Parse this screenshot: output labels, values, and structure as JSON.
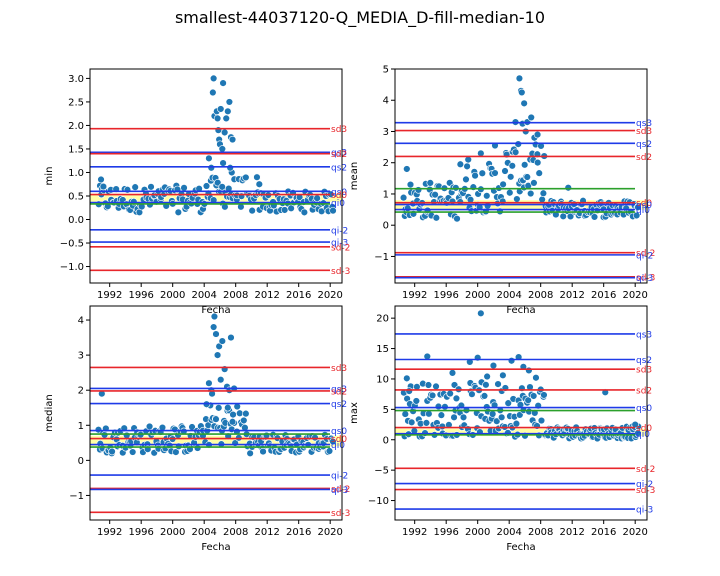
{
  "figure_title": "smallest-44037120-Q_MEDIA_D-fill-median-10",
  "colors": {
    "points": "#1f77b4",
    "sd": "#e8262b",
    "qs": "#1f3be8",
    "qi": "#1f3be8",
    "median": "#2ca02c",
    "band": "#ffff80"
  },
  "chart_data": [
    {
      "type": "scatter",
      "title": "",
      "xlabel": "Fecha",
      "ylabel": "min",
      "xlim": [
        1989.5,
        2021.5
      ],
      "ylim": [
        -1.35,
        3.2
      ],
      "xticks": [
        "1992",
        "1996",
        "2000",
        "2004",
        "2008",
        "2012",
        "2016",
        "2020"
      ],
      "yticks": [
        "−1.0",
        "−0.5",
        "0.0",
        "0.5",
        "1.0",
        "1.5",
        "2.0",
        "2.5",
        "3.0"
      ],
      "ytick_values": [
        -1.0,
        -0.5,
        0.0,
        0.5,
        1.0,
        1.5,
        2.0,
        2.5,
        3.0
      ],
      "band": [
        0.38,
        0.55
      ],
      "lines": [
        {
          "label": "sd3",
          "y": 1.93,
          "kind": "sd"
        },
        {
          "label": "qs3",
          "y": 1.43,
          "kind": "qs"
        },
        {
          "label": "sd2",
          "y": 1.4,
          "kind": "sd"
        },
        {
          "label": "qs2",
          "y": 1.12,
          "kind": "qs"
        },
        {
          "label": "qs0",
          "y": 0.6,
          "kind": "qs"
        },
        {
          "label": "sd0",
          "y": 0.53,
          "kind": "sd"
        },
        {
          "label": "qi0",
          "y": 0.36,
          "kind": "qi"
        },
        {
          "label": "",
          "y": 0.33,
          "kind": "median"
        },
        {
          "label": "qi-2",
          "y": -0.22,
          "kind": "qi"
        },
        {
          "label": "qi-3",
          "y": -0.48,
          "kind": "qi"
        },
        {
          "label": "sd-2",
          "y": -0.58,
          "kind": "sd"
        },
        {
          "label": "sd-3",
          "y": -1.08,
          "kind": "sd"
        }
      ],
      "base_points": {
        "x0": 1990.5,
        "x1": 2020.5,
        "n": 180,
        "ranges": [
          [
            1990.5,
            2004,
            0.15,
            0.72
          ],
          [
            2004,
            2009.5,
            0.25,
            0.9
          ],
          [
            2009.5,
            2020.5,
            0.15,
            0.6
          ]
        ]
      },
      "points": [
        [
          2004.6,
          1.3
        ],
        [
          2004.9,
          1.1
        ],
        [
          2005.1,
          2.7
        ],
        [
          2005.3,
          2.2
        ],
        [
          2005.2,
          3.0
        ],
        [
          2005.6,
          2.3
        ],
        [
          2005.7,
          2.15
        ],
        [
          2005.8,
          1.9
        ],
        [
          2005.9,
          1.7
        ],
        [
          2006.0,
          1.6
        ],
        [
          2006.1,
          2.35
        ],
        [
          2006.3,
          1.5
        ],
        [
          2006.4,
          2.9
        ],
        [
          2006.4,
          1.2
        ],
        [
          2006.6,
          1.85
        ],
        [
          2006.8,
          2.15
        ],
        [
          2007.0,
          2.3
        ],
        [
          2007.2,
          2.5
        ],
        [
          2007.4,
          1.75
        ],
        [
          2007.5,
          1.0
        ],
        [
          2007.6,
          1.7
        ],
        [
          2007.3,
          1.1
        ],
        [
          2010.7,
          0.9
        ],
        [
          2011.0,
          0.75
        ],
        [
          1990.9,
          0.85
        ],
        [
          1991.2,
          0.7
        ]
      ]
    },
    {
      "type": "scatter",
      "title": "",
      "xlabel": "Fecha",
      "ylabel": "mean",
      "xlim": [
        1989.5,
        2021.5
      ],
      "ylim": [
        -1.85,
        5.0
      ],
      "xticks": [
        "1992",
        "1996",
        "2000",
        "2004",
        "2008",
        "2012",
        "2016",
        "2020"
      ],
      "yticks": [
        "−1",
        "0",
        "1",
        "2",
        "3",
        "4",
        "5"
      ],
      "ytick_values": [
        -1,
        0,
        1,
        2,
        3,
        4,
        5
      ],
      "band": [
        0.5,
        0.8
      ],
      "lines": [
        {
          "label": "qs3",
          "y": 3.28,
          "kind": "qs"
        },
        {
          "label": "sd3",
          "y": 3.03,
          "kind": "sd"
        },
        {
          "label": "qs2",
          "y": 2.62,
          "kind": "qs"
        },
        {
          "label": "sd2",
          "y": 2.2,
          "kind": "sd"
        },
        {
          "label": "",
          "y": 1.17,
          "kind": "median"
        },
        {
          "label": "sd0",
          "y": 0.72,
          "kind": "sd"
        },
        {
          "label": "qs0",
          "y": 0.66,
          "kind": "qs"
        },
        {
          "label": "qi0",
          "y": 0.5,
          "kind": "qi"
        },
        {
          "label": "",
          "y": 0.42,
          "kind": "median"
        },
        {
          "label": "sd-2",
          "y": -0.88,
          "kind": "sd"
        },
        {
          "label": "qi-2",
          "y": -0.95,
          "kind": "qi"
        },
        {
          "label": "sd-3",
          "y": -1.65,
          "kind": "sd"
        },
        {
          "label": "qi-3",
          "y": -1.68,
          "kind": "qi"
        }
      ],
      "base_points": {
        "x0": 1990.5,
        "x1": 2020.5,
        "n": 200,
        "ranges": [
          [
            1990.5,
            1997.5,
            0.2,
            1.4
          ],
          [
            1997.5,
            2003.5,
            0.4,
            2.0
          ],
          [
            2003.5,
            2008.5,
            0.8,
            2.6
          ],
          [
            2008.5,
            2020.5,
            0.25,
            0.8
          ]
        ]
      },
      "points": [
        [
          2004.8,
          3.3
        ],
        [
          2005.3,
          4.7
        ],
        [
          2005.5,
          4.3
        ],
        [
          2005.6,
          4.25
        ],
        [
          2005.7,
          3.25
        ],
        [
          2005.9,
          3.9
        ],
        [
          2006.1,
          3.0
        ],
        [
          2006.3,
          3.3
        ],
        [
          2006.8,
          3.45
        ],
        [
          2007.2,
          2.8
        ],
        [
          2007.6,
          2.9
        ],
        [
          2002.2,
          2.55
        ],
        [
          1998.8,
          2.1
        ],
        [
          1997.8,
          1.95
        ],
        [
          2000.4,
          2.3
        ],
        [
          1991.0,
          1.8
        ],
        [
          2011.5,
          1.2
        ]
      ]
    },
    {
      "type": "scatter",
      "title": "",
      "xlabel": "Fecha",
      "ylabel": "median",
      "xlim": [
        1989.5,
        2021.5
      ],
      "ylim": [
        -1.7,
        4.4
      ],
      "xticks": [
        "1992",
        "1996",
        "2000",
        "2004",
        "2008",
        "2012",
        "2016",
        "2020"
      ],
      "yticks": [
        "−1",
        "0",
        "1",
        "2",
        "3",
        "4"
      ],
      "ytick_values": [
        -1,
        0,
        1,
        2,
        3,
        4
      ],
      "band": [
        0.4,
        0.7
      ],
      "lines": [
        {
          "label": "sd3",
          "y": 2.65,
          "kind": "sd"
        },
        {
          "label": "qs3",
          "y": 2.05,
          "kind": "qs"
        },
        {
          "label": "sd2",
          "y": 1.98,
          "kind": "sd"
        },
        {
          "label": "qs2",
          "y": 1.62,
          "kind": "qs"
        },
        {
          "label": "qs0",
          "y": 0.85,
          "kind": "qs"
        },
        {
          "label": "",
          "y": 0.75,
          "kind": "median"
        },
        {
          "label": "sd0",
          "y": 0.62,
          "kind": "sd"
        },
        {
          "label": "qi0",
          "y": 0.45,
          "kind": "qi"
        },
        {
          "label": "",
          "y": 0.38,
          "kind": "median"
        },
        {
          "label": "qi-2",
          "y": -0.42,
          "kind": "qi"
        },
        {
          "label": "sd-2",
          "y": -0.8,
          "kind": "sd"
        },
        {
          "label": "qi-3",
          "y": -0.83,
          "kind": "qi"
        },
        {
          "label": "sd-3",
          "y": -1.48,
          "kind": "sd"
        }
      ],
      "base_points": {
        "x0": 1990.5,
        "x1": 2020.5,
        "n": 200,
        "ranges": [
          [
            1990.5,
            2004,
            0.2,
            1.0
          ],
          [
            2004,
            2009.5,
            0.4,
            1.6
          ],
          [
            2009.5,
            2020.5,
            0.2,
            0.75
          ]
        ]
      },
      "points": [
        [
          2005.2,
          3.8
        ],
        [
          2005.3,
          4.1
        ],
        [
          2005.5,
          3.6
        ],
        [
          2005.7,
          3.0
        ],
        [
          2005.9,
          3.25
        ],
        [
          2006.3,
          3.4
        ],
        [
          2006.6,
          2.6
        ],
        [
          2006.9,
          2.1
        ],
        [
          2007.2,
          2.0
        ],
        [
          2007.4,
          3.5
        ],
        [
          2007.0,
          1.5
        ],
        [
          2007.6,
          1.1
        ],
        [
          2004.6,
          2.2
        ],
        [
          2004.9,
          2.0
        ],
        [
          1991.0,
          1.9
        ],
        [
          2004.3,
          1.6
        ],
        [
          2005.0,
          1.9
        ],
        [
          2006.1,
          2.3
        ],
        [
          2007.8,
          2.05
        ]
      ]
    },
    {
      "type": "scatter",
      "title": "",
      "xlabel": "Fecha",
      "ylabel": "max",
      "xlim": [
        1989.5,
        2021.5
      ],
      "ylim": [
        -13.2,
        22.0
      ],
      "xticks": [
        "1992",
        "1996",
        "2000",
        "2004",
        "2008",
        "2012",
        "2016",
        "2020"
      ],
      "yticks": [
        "−10",
        "−5",
        "0",
        "5",
        "10",
        "15",
        "20"
      ],
      "ytick_values": [
        -10,
        -5,
        0,
        5,
        10,
        15,
        20
      ],
      "band": [
        0.6,
        1.8
      ],
      "lines": [
        {
          "label": "qs3",
          "y": 17.4,
          "kind": "qs"
        },
        {
          "label": "qs2",
          "y": 13.2,
          "kind": "qs"
        },
        {
          "label": "sd3",
          "y": 11.6,
          "kind": "sd"
        },
        {
          "label": "sd2",
          "y": 8.2,
          "kind": "sd"
        },
        {
          "label": "qs0",
          "y": 5.3,
          "kind": "qs"
        },
        {
          "label": "",
          "y": 4.8,
          "kind": "median"
        },
        {
          "label": "sd0",
          "y": 2.0,
          "kind": "sd"
        },
        {
          "label": "qi0",
          "y": 1.0,
          "kind": "qi"
        },
        {
          "label": "",
          "y": 0.8,
          "kind": "median"
        },
        {
          "label": "sd-2",
          "y": -4.7,
          "kind": "sd"
        },
        {
          "label": "qi-2",
          "y": -7.2,
          "kind": "qi"
        },
        {
          "label": "sd-3",
          "y": -8.2,
          "kind": "sd"
        },
        {
          "label": "qi-3",
          "y": -11.4,
          "kind": "qi"
        }
      ],
      "base_points": {
        "x0": 1990.5,
        "x1": 2020.5,
        "n": 220,
        "ranges": [
          [
            1990.5,
            2008.5,
            0.5,
            9.5
          ],
          [
            2008.5,
            2020.5,
            0.2,
            2.2
          ]
        ]
      },
      "points": [
        [
          2000.4,
          20.8
        ],
        [
          1993.6,
          13.7
        ],
        [
          1991.0,
          10.1
        ],
        [
          1991.3,
          8.0
        ],
        [
          1996.8,
          11.0
        ],
        [
          1999.0,
          12.8
        ],
        [
          2000.0,
          13.5
        ],
        [
          2002.0,
          12.2
        ],
        [
          2004.3,
          13.0
        ],
        [
          2005.2,
          13.6
        ],
        [
          2005.8,
          12.0
        ],
        [
          2006.5,
          11.4
        ],
        [
          2003.2,
          10.6
        ],
        [
          2007.4,
          10.2
        ],
        [
          2016.2,
          7.8
        ],
        [
          2020.0,
          2.5
        ],
        [
          1997.3,
          6.8
        ],
        [
          2001.2,
          10.4
        ]
      ]
    }
  ]
}
